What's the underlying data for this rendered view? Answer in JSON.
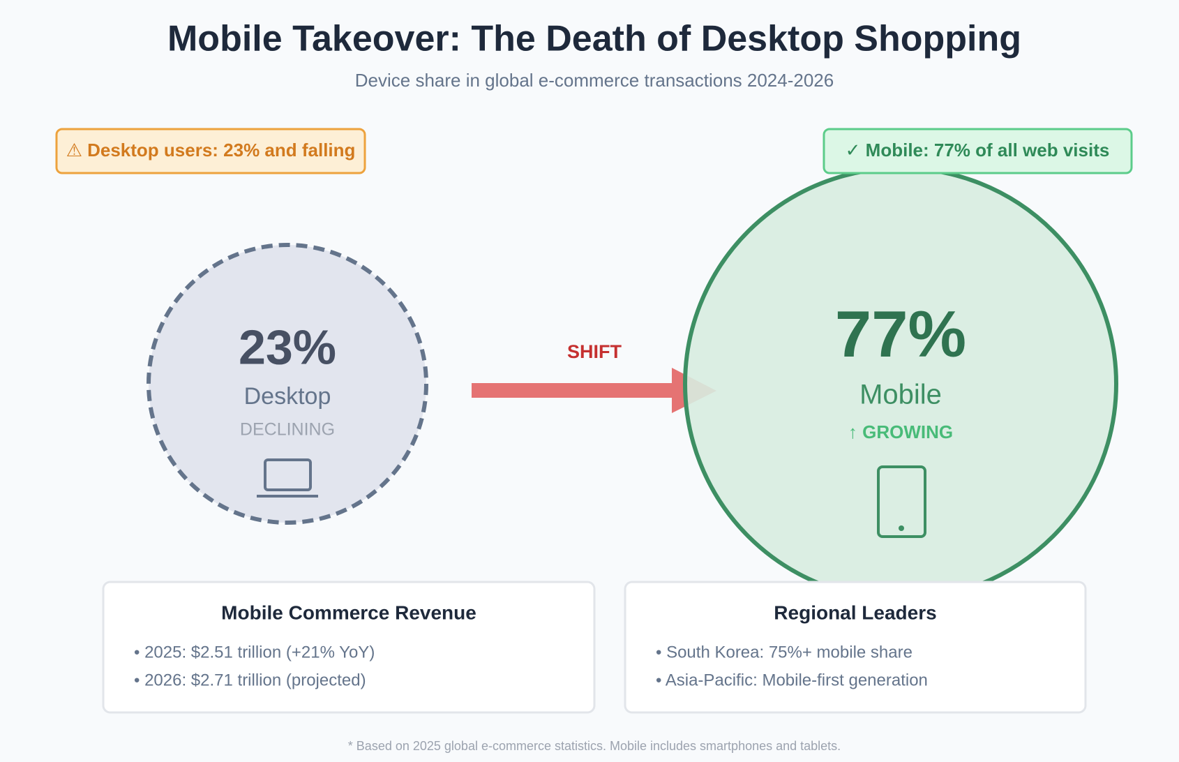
{
  "header": {
    "title": "Mobile Takeover: The Death of Desktop Shopping",
    "subtitle": "Device share in global e-commerce transactions 2024-2026"
  },
  "badges": {
    "desktop": "⚠ Desktop users: 23% and falling",
    "mobile": "✓ Mobile: 77% of all web visits"
  },
  "desktop": {
    "share": "23%",
    "label": "Desktop",
    "status": "DECLINING"
  },
  "arrow": {
    "label": "SHIFT"
  },
  "mobile": {
    "share": "77%",
    "label": "Mobile",
    "status": "↑ GROWING"
  },
  "cards": [
    {
      "title": "Mobile Commerce Revenue",
      "items": [
        "• 2025: $2.51 trillion (+21% YoY)",
        "• 2026: $2.71 trillion (projected)"
      ]
    },
    {
      "title": "Regional Leaders",
      "items": [
        "• South Korea: 75%+ mobile share",
        "• Asia-Pacific: Mobile-first generation"
      ]
    }
  ],
  "footnote": "* Based on 2025 global e-commerce statistics. Mobile includes smartphones and tablets."
}
